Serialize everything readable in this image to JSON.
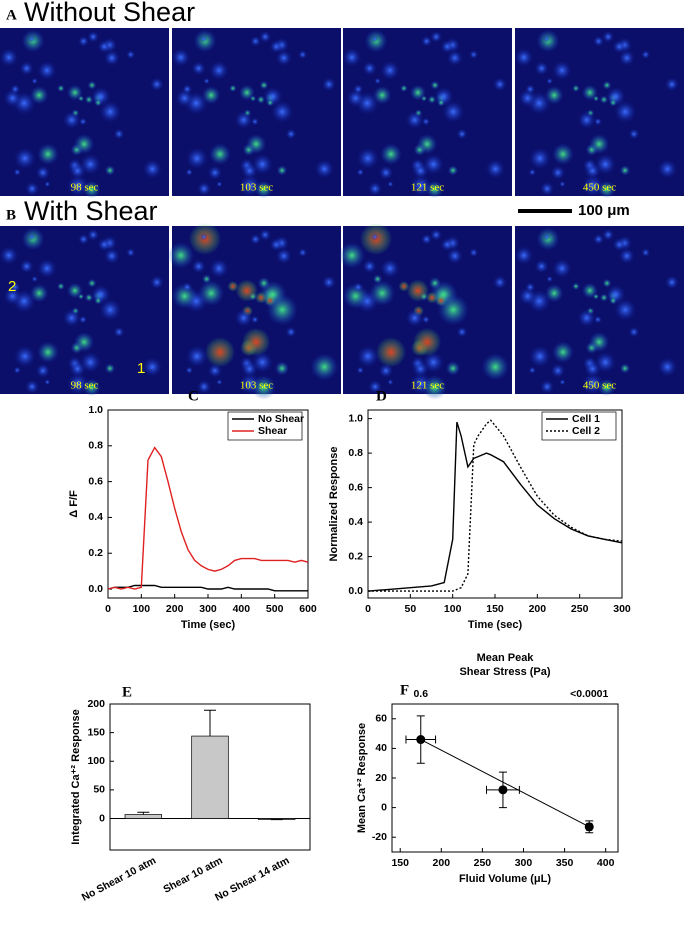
{
  "panel_a": {
    "letter": "A",
    "title": "Without Shear",
    "frames": [
      "98 sec",
      "103 sec",
      "121 sec",
      "450 sec"
    ]
  },
  "panel_b": {
    "letter": "B",
    "title": "With Shear",
    "frames": [
      "98 sec",
      "103 sec",
      "121 sec",
      "450 sec"
    ],
    "cell_labels": [
      "2",
      "1"
    ]
  },
  "scale_bar": "100 μm",
  "chart_data": [
    {
      "type": "line",
      "title": "C",
      "xlabel": "Time (sec)",
      "ylabel": "Δ F/F",
      "x": [
        0,
        20,
        40,
        60,
        80,
        100,
        120,
        140,
        160,
        180,
        200,
        220,
        240,
        260,
        280,
        300,
        320,
        340,
        360,
        380,
        400,
        420,
        440,
        460,
        480,
        500,
        520,
        540,
        560,
        580,
        600
      ],
      "series": [
        {
          "name": "No Shear",
          "color": "#000000",
          "values": [
            0.0,
            0.01,
            0.01,
            0.01,
            0.02,
            0.02,
            0.02,
            0.02,
            0.01,
            0.01,
            0.01,
            0.01,
            0.01,
            0.01,
            0.01,
            0.0,
            0.0,
            0.0,
            0.01,
            0.0,
            0.0,
            0.0,
            0.0,
            0.0,
            0.0,
            -0.01,
            -0.01,
            -0.01,
            -0.01,
            -0.01,
            -0.01
          ]
        },
        {
          "name": "Shear",
          "color": "#e02020",
          "values": [
            0.0,
            0.01,
            0.0,
            0.01,
            0.0,
            0.01,
            0.72,
            0.79,
            0.74,
            0.6,
            0.45,
            0.32,
            0.22,
            0.16,
            0.13,
            0.11,
            0.1,
            0.11,
            0.13,
            0.16,
            0.17,
            0.17,
            0.17,
            0.16,
            0.16,
            0.16,
            0.16,
            0.16,
            0.15,
            0.16,
            0.15
          ]
        }
      ],
      "xlim": [
        0,
        600
      ],
      "xticks": [
        0,
        100,
        200,
        300,
        400,
        500,
        600
      ],
      "ylim": [
        -0.05,
        1.0
      ],
      "yticks": [
        {
          "value": 0,
          "label": "0.0"
        },
        {
          "value": 0.2,
          "label": "0.2"
        },
        {
          "value": 0.4,
          "label": "0.4"
        },
        {
          "value": 0.6,
          "label": "0.6"
        },
        {
          "value": 0.8,
          "label": "0.8"
        },
        {
          "value": 1.0,
          "label": "1.0"
        }
      ],
      "legend": "upper right"
    },
    {
      "type": "line",
      "title": "D",
      "xlabel": "Time (sec)",
      "ylabel": "Normalized Response",
      "x": [
        0,
        25,
        50,
        75,
        90,
        100,
        105,
        110,
        118,
        125,
        130,
        140,
        145,
        160,
        180,
        200,
        220,
        240,
        260,
        280,
        300
      ],
      "series": [
        {
          "name": "Cell 1",
          "color": "#000000",
          "dash": false,
          "values": [
            0,
            0.01,
            0.02,
            0.03,
            0.05,
            0.3,
            0.98,
            0.9,
            0.72,
            0.77,
            0.78,
            0.8,
            0.79,
            0.75,
            0.62,
            0.5,
            0.42,
            0.36,
            0.32,
            0.3,
            0.28
          ]
        },
        {
          "name": "Cell 2",
          "color": "#000000",
          "dash": true,
          "values": [
            0,
            0,
            0,
            0,
            0,
            0,
            0.01,
            0.02,
            0.1,
            0.85,
            0.9,
            0.97,
            0.99,
            0.9,
            0.72,
            0.55,
            0.44,
            0.37,
            0.32,
            0.3,
            0.29
          ]
        }
      ],
      "xlim": [
        0,
        300
      ],
      "xticks": [
        0,
        50,
        100,
        150,
        200,
        250,
        300
      ],
      "ylim": [
        -0.04,
        1.05
      ],
      "yticks": [
        {
          "value": 0,
          "label": "0.0"
        },
        {
          "value": 0.2,
          "label": "0.2"
        },
        {
          "value": 0.4,
          "label": "0.4"
        },
        {
          "value": 0.6,
          "label": "0.6"
        },
        {
          "value": 0.8,
          "label": "0.8"
        },
        {
          "value": 1.0,
          "label": "1.0"
        }
      ],
      "legend": "upper right"
    },
    {
      "type": "bar",
      "title": "E",
      "ylabel": "Integrated Ca⁺² Response",
      "categories": [
        "No Shear 10 atm",
        "Shear 10 atm",
        "No Shear 14 atm"
      ],
      "values": [
        7,
        144,
        -1
      ],
      "errors": [
        4,
        45,
        1
      ],
      "color": "#c8c8c8",
      "ylim": [
        -55,
        200
      ],
      "yticks": [
        0,
        50,
        100,
        150,
        200
      ],
      "zero_line": true
    },
    {
      "type": "scatter",
      "title": "F",
      "xlabel": "Fluid Volume (μL)",
      "ylabel": "Mean Ca⁺² Response",
      "x2label": [
        "Mean Peak",
        "Shear Stress (Pa)"
      ],
      "x": [
        175,
        275,
        380
      ],
      "y": [
        46,
        12,
        -13
      ],
      "xerr": [
        18,
        20,
        3
      ],
      "yerr": [
        16,
        12,
        4
      ],
      "top_labels": [
        {
          "text": "0.6",
          "x": 175
        },
        {
          "text": "<0.0001",
          "x": 380
        }
      ],
      "trendline": {
        "x": [
          175,
          380
        ],
        "y": [
          46,
          -13
        ]
      },
      "color": "#000000",
      "xlim": [
        140,
        415
      ],
      "xticks": [
        150,
        200,
        250,
        300,
        350,
        400
      ],
      "ylim": [
        -30,
        70
      ],
      "yticks": [
        -20,
        0,
        20,
        40,
        60
      ]
    }
  ]
}
